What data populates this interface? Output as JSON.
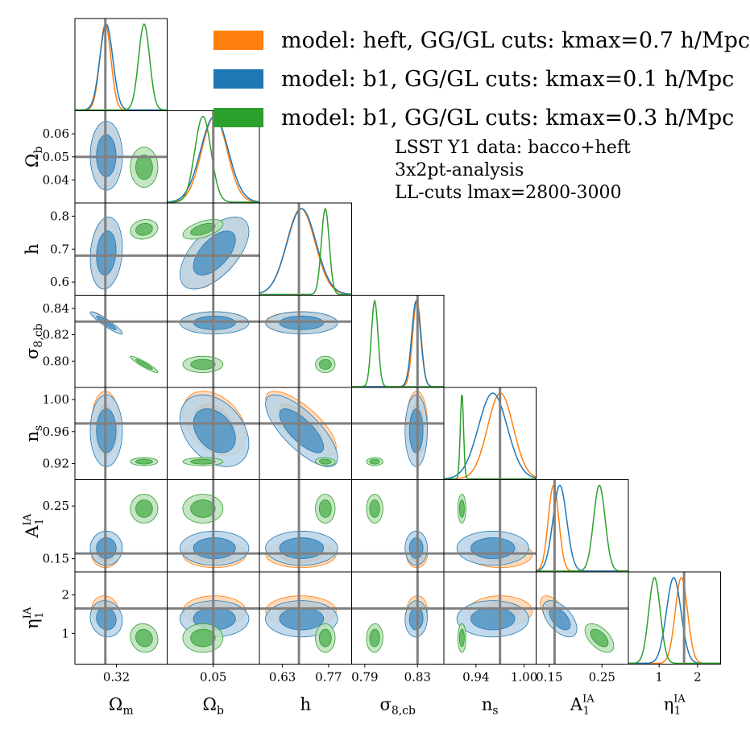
{
  "chart_data": {
    "type": "corner",
    "parameters": [
      {
        "label_main": "Ω",
        "label_sub": "m",
        "label_sup": "",
        "truth": 0.308,
        "range": [
          0.275,
          0.375
        ],
        "ticks": [
          0.32
        ],
        "tick_labels": [
          "0.32"
        ]
      },
      {
        "label_main": "Ω",
        "label_sub": "b",
        "label_sup": "",
        "truth": 0.05,
        "range": [
          0.03,
          0.07
        ],
        "ticks": [
          0.04,
          0.05,
          0.06
        ],
        "tick_labels": [
          "0.04",
          "0.05",
          "0.06"
        ]
      },
      {
        "label_main": "h",
        "label_sub": "",
        "label_sup": "",
        "truth": 0.68,
        "range": [
          0.56,
          0.84
        ],
        "ticks": [
          0.6,
          0.63,
          0.7,
          0.77,
          0.8
        ],
        "tick_labels": [
          "0.6",
          "0.63",
          "0.7",
          "0.77",
          "0.8"
        ]
      },
      {
        "label_main": "σ",
        "label_sub": "8,cb",
        "label_sup": "",
        "truth": 0.83,
        "range": [
          0.78,
          0.85
        ],
        "ticks": [
          0.79,
          0.8,
          0.82,
          0.83,
          0.84
        ],
        "tick_labels": [
          "0.79",
          "0.80",
          "0.82",
          "0.83",
          "0.84"
        ]
      },
      {
        "label_main": "n",
        "label_sub": "s",
        "label_sup": "",
        "truth": 0.97,
        "range": [
          0.9,
          1.015
        ],
        "ticks": [
          0.92,
          0.94,
          0.96,
          1.0
        ],
        "tick_labels": [
          "0.92",
          "0.94",
          "0.96",
          "1.00"
        ]
      },
      {
        "label_main": "A",
        "label_sub": "1",
        "label_sup": "IA",
        "truth": 0.16,
        "range": [
          0.125,
          0.3
        ],
        "ticks": [
          0.15,
          0.25
        ],
        "tick_labels": [
          "0.15",
          "0.25"
        ]
      },
      {
        "label_main": "η",
        "label_sub": "1",
        "label_sup": "IA",
        "truth": 1.65,
        "range": [
          0.2,
          2.6
        ],
        "ticks": [
          1,
          2
        ],
        "tick_labels": [
          "1",
          "2"
        ]
      }
    ],
    "diag_axis_labels": {
      "x": [
        [
          "0.32"
        ],
        [
          "0.05"
        ],
        [
          "0.63",
          "0.77"
        ],
        [
          "0.79",
          "0.83"
        ],
        [
          "0.94",
          "1.00"
        ],
        [
          "0.15",
          "0.25"
        ],
        [
          "1",
          "2"
        ]
      ],
      "y": [
        [],
        [
          "0.04",
          "0.05",
          "0.06"
        ],
        [
          "0.6",
          "0.7",
          "0.8"
        ],
        [
          "0.80",
          "0.82",
          "0.84"
        ],
        [
          "0.92",
          "0.96",
          "1.00"
        ],
        [
          "0.15",
          "0.25"
        ],
        [
          "1",
          "2"
        ]
      ]
    },
    "series": [
      {
        "name": "model: heft, GG/GL cuts: kmax=0.7 h/Mpc",
        "color": "#ff7f0e",
        "mean": [
          0.308,
          0.0505,
          0.686,
          0.8295,
          0.9705,
          0.158,
          1.58
        ],
        "sigma": [
          0.006,
          0.0055,
          0.043,
          0.0032,
          0.016,
          0.01,
          0.16
        ]
      },
      {
        "name": "model: b1, GG/GL cuts: kmax=0.1 h/Mpc",
        "color": "#1f77b4",
        "mean": [
          0.309,
          0.0505,
          0.688,
          0.829,
          0.961,
          0.17,
          1.38
        ],
        "sigma": [
          0.007,
          0.006,
          0.044,
          0.0034,
          0.018,
          0.013,
          0.19
        ]
      },
      {
        "name": "model: b1, GG/GL cuts: kmax=0.3 h/Mpc",
        "color": "#2ca02c",
        "mean": [
          0.35,
          0.0455,
          0.76,
          0.7975,
          0.9225,
          0.245,
          0.88
        ],
        "sigma": [
          0.006,
          0.0035,
          0.012,
          0.0025,
          0.002,
          0.011,
          0.15
        ]
      }
    ],
    "truth_line_color": "#808080"
  },
  "legend": {
    "items": [
      {
        "label": "model: heft, GG/GL cuts: kmax=0.7 h/Mpc",
        "color": "#ff7f0e"
      },
      {
        "label": "model: b1, GG/GL cuts: kmax=0.1 h/Mpc",
        "color": "#1f77b4"
      },
      {
        "label": "model: b1, GG/GL cuts: kmax=0.3 h/Mpc",
        "color": "#2ca02c"
      }
    ]
  },
  "annotation": {
    "line1": "LSST Y1 data: bacco+heft",
    "line2": "3x2pt-analysis",
    "line3": "LL-cuts lmax=2800-3000"
  }
}
